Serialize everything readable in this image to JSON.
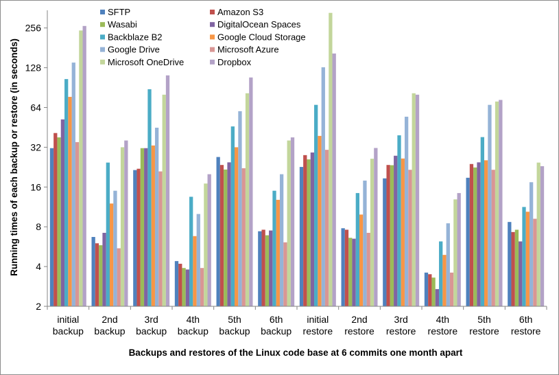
{
  "chart_data": {
    "type": "bar",
    "title": "",
    "xlabel": "Backups and restores of the Linux code base at 6 commits one month apart",
    "ylabel": "Running times of each backup or restore (in seconds)",
    "yscale": "log2",
    "ylim": [
      2,
      350
    ],
    "yticks": [
      2,
      4,
      8,
      16,
      32,
      64,
      128,
      256
    ],
    "grid": false,
    "legend": "top, two columns",
    "categories": [
      [
        "initial",
        "backup"
      ],
      [
        "2nd",
        "backup"
      ],
      [
        "3rd",
        "backup"
      ],
      [
        "4th",
        "backup"
      ],
      [
        "5th",
        "backup"
      ],
      [
        "6th",
        "backup"
      ],
      [
        "initial",
        "restore"
      ],
      [
        "2nd",
        "restore"
      ],
      [
        "3rd",
        "restore"
      ],
      [
        "4th",
        "restore"
      ],
      [
        "5th",
        "restore"
      ],
      [
        "6th",
        "restore"
      ]
    ],
    "series": [
      {
        "name": "SFTP",
        "color": "#4F81BD",
        "values": [
          31.5,
          6.7,
          21.5,
          4.4,
          27,
          7.4,
          22.7,
          7.8,
          18.6,
          3.6,
          18.8,
          8.7
        ]
      },
      {
        "name": "Amazon S3",
        "color": "#C0504D",
        "values": [
          41,
          6.0,
          22,
          4.2,
          23.5,
          7.6,
          27.9,
          7.6,
          23.5,
          3.5,
          23.9,
          7.3
        ]
      },
      {
        "name": "Wasabi",
        "color": "#9BBB59",
        "values": [
          38,
          5.8,
          31.5,
          3.9,
          21.7,
          6.9,
          25.9,
          6.6,
          23.4,
          3.3,
          22.5,
          7.6
        ]
      },
      {
        "name": "DigitalOcean Spaces",
        "color": "#8064A2",
        "values": [
          52,
          7.2,
          31.5,
          3.8,
          24.6,
          7.5,
          29.2,
          6.5,
          27.6,
          2.7,
          24.6,
          6.2
        ]
      },
      {
        "name": "Backblaze B2",
        "color": "#4BACC6",
        "values": [
          105,
          24.5,
          88,
          13.5,
          46,
          15,
          67,
          14.4,
          39.4,
          6.2,
          38.2,
          11.3
        ]
      },
      {
        "name": "Google Cloud Storage",
        "color": "#F79646",
        "values": [
          77,
          12,
          33,
          6.8,
          32,
          12.8,
          39,
          9.9,
          26.3,
          4.9,
          25.5,
          10.4
        ]
      },
      {
        "name": "Google Drive",
        "color": "#95B3D7",
        "values": [
          140,
          15,
          45,
          10,
          60,
          20,
          129,
          17.9,
          54.5,
          8.5,
          67,
          17.4
        ]
      },
      {
        "name": "Microsoft Azure",
        "color": "#D99694",
        "values": [
          35,
          5.5,
          21,
          3.9,
          22.2,
          6.1,
          30.6,
          7.2,
          21.6,
          3.6,
          21.6,
          9.2
        ]
      },
      {
        "name": "Microsoft OneDrive",
        "color": "#C3D69B",
        "values": [
          245,
          32,
          80,
          17,
          82,
          36,
          333,
          26.2,
          82,
          12.9,
          71,
          24.5
        ]
      },
      {
        "name": "Dropbox",
        "color": "#B3A2C7",
        "values": [
          265,
          36,
          112,
          20,
          108,
          38,
          164,
          31.6,
          80,
          14.4,
          73,
          23
        ]
      }
    ]
  }
}
